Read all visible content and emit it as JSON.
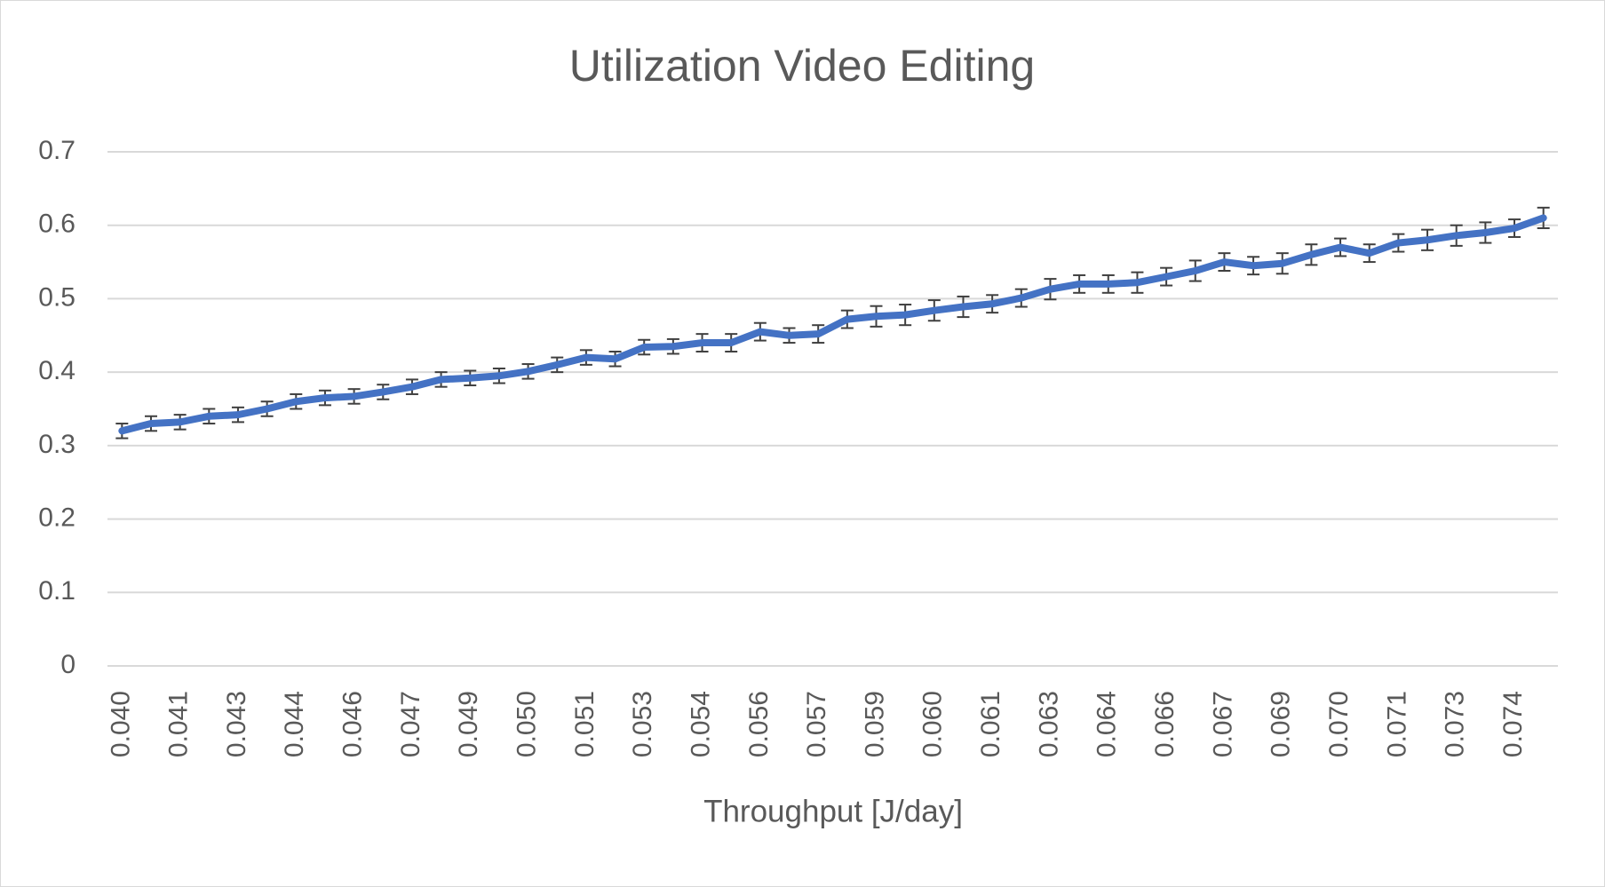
{
  "chart_data": {
    "type": "line",
    "title": "Utilization Video Editing",
    "x_label": "Throughput [J/day]",
    "categories": [
      "0.040",
      null,
      "0.041",
      null,
      "0.043",
      null,
      "0.044",
      null,
      "0.046",
      null,
      "0.047",
      null,
      "0.049",
      null,
      "0.050",
      null,
      "0.051",
      null,
      "0.053",
      null,
      "0.054",
      null,
      "0.056",
      null,
      "0.057",
      null,
      "0.059",
      null,
      "0.060",
      null,
      "0.061",
      null,
      "0.063",
      null,
      "0.064",
      null,
      "0.066",
      null,
      "0.067",
      null,
      "0.069",
      null,
      "0.070",
      null,
      "0.071",
      null,
      "0.073",
      null,
      "0.074",
      null
    ],
    "values": [
      0.32,
      0.33,
      0.332,
      0.34,
      0.342,
      0.35,
      0.36,
      0.365,
      0.367,
      0.373,
      0.38,
      0.39,
      0.392,
      0.395,
      0.401,
      0.41,
      0.42,
      0.418,
      0.434,
      0.435,
      0.44,
      0.44,
      0.455,
      0.45,
      0.452,
      0.472,
      0.476,
      0.478,
      0.484,
      0.489,
      0.493,
      0.501,
      0.513,
      0.52,
      0.52,
      0.522,
      0.53,
      0.538,
      0.55,
      0.545,
      0.548,
      0.56,
      0.57,
      0.562,
      0.576,
      0.58,
      0.586,
      0.59,
      0.596,
      0.61
    ],
    "errors": [
      0.01,
      0.01,
      0.01,
      0.01,
      0.01,
      0.01,
      0.01,
      0.01,
      0.01,
      0.01,
      0.01,
      0.01,
      0.01,
      0.01,
      0.01,
      0.01,
      0.01,
      0.01,
      0.01,
      0.01,
      0.012,
      0.012,
      0.012,
      0.01,
      0.012,
      0.012,
      0.014,
      0.014,
      0.014,
      0.014,
      0.012,
      0.012,
      0.014,
      0.012,
      0.012,
      0.014,
      0.012,
      0.014,
      0.012,
      0.012,
      0.014,
      0.014,
      0.012,
      0.012,
      0.012,
      0.014,
      0.014,
      0.014,
      0.012,
      0.014
    ],
    "color": "#4472c4",
    "error_color": "#404040",
    "ylim": [
      0,
      0.7
    ],
    "yticks": [
      0,
      0.1,
      0.2,
      0.3,
      0.4,
      0.5,
      0.6,
      0.7
    ],
    "grid": true
  }
}
